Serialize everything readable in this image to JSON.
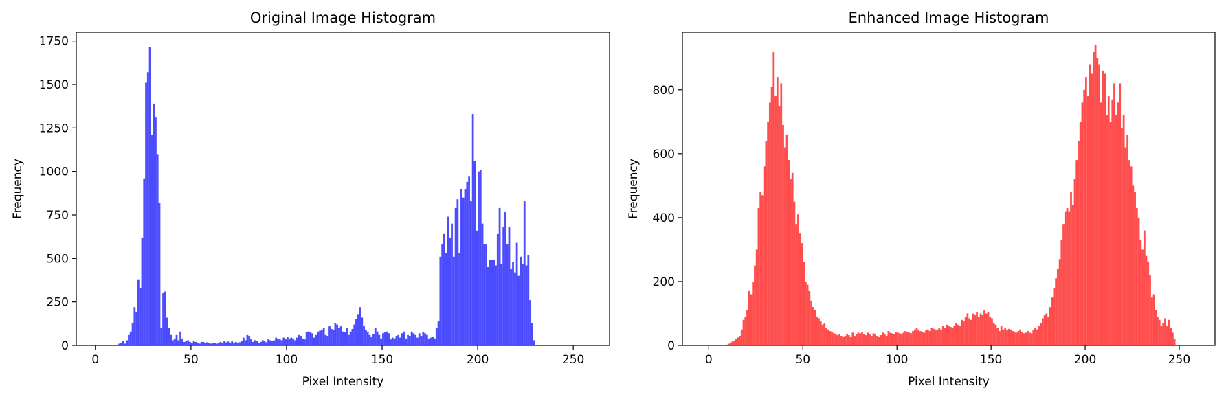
{
  "chart_data": [
    {
      "type": "histogram",
      "title": "Original Image Histogram",
      "xlabel": "Pixel Intensity",
      "ylabel": "Frequency",
      "xlim": [
        -10,
        269
      ],
      "ylim": [
        0,
        1800
      ],
      "xticks": [
        0,
        50,
        100,
        150,
        200,
        250
      ],
      "yticks": [
        0,
        250,
        500,
        750,
        1000,
        1250,
        1500,
        1750
      ],
      "color": "#0000ff",
      "opacity": 0.7,
      "bin_start": 0,
      "bin_width": 1,
      "values": [
        0,
        0,
        0,
        0,
        0,
        0,
        0,
        0,
        0,
        0,
        0,
        0,
        10,
        15,
        25,
        10,
        30,
        60,
        80,
        130,
        220,
        190,
        380,
        330,
        620,
        960,
        1510,
        1570,
        1715,
        1210,
        1390,
        1310,
        1100,
        820,
        100,
        300,
        310,
        160,
        100,
        60,
        30,
        40,
        60,
        30,
        80,
        40,
        20,
        25,
        30,
        20,
        15,
        25,
        20,
        15,
        10,
        20,
        20,
        15,
        18,
        12,
        10,
        15,
        12,
        10,
        15,
        20,
        15,
        25,
        18,
        22,
        15,
        25,
        12,
        20,
        15,
        18,
        25,
        45,
        30,
        60,
        55,
        35,
        20,
        30,
        25,
        15,
        20,
        30,
        25,
        18,
        35,
        30,
        25,
        30,
        45,
        40,
        35,
        30,
        45,
        35,
        50,
        40,
        45,
        40,
        30,
        45,
        60,
        55,
        40,
        35,
        75,
        80,
        75,
        70,
        45,
        60,
        80,
        85,
        90,
        100,
        60,
        55,
        110,
        95,
        90,
        130,
        120,
        100,
        110,
        80,
        75,
        100,
        60,
        80,
        95,
        120,
        150,
        180,
        220,
        160,
        110,
        90,
        80,
        60,
        50,
        65,
        100,
        80,
        60,
        40,
        70,
        75,
        80,
        70,
        35,
        45,
        40,
        55,
        60,
        45,
        70,
        80,
        40,
        60,
        55,
        80,
        70,
        60,
        45,
        70,
        55,
        75,
        70,
        60,
        40,
        45,
        50,
        40,
        100,
        140,
        510,
        580,
        640,
        530,
        740,
        620,
        700,
        510,
        790,
        840,
        530,
        900,
        850,
        900,
        940,
        970,
        830,
        1330,
        1060,
        660,
        1000,
        1010,
        700,
        580,
        580,
        450,
        490,
        490,
        490,
        460,
        640,
        790,
        470,
        680,
        770,
        580,
        680,
        440,
        480,
        420,
        590,
        400,
        510,
        470,
        830,
        460,
        520,
        260,
        130,
        30,
        0,
        0,
        0,
        0,
        0,
        0,
        0,
        0,
        0,
        0,
        0,
        0,
        0,
        0,
        0,
        0
      ]
    },
    {
      "type": "histogram",
      "title": "Enhanced Image Histogram",
      "xlabel": "Pixel Intensity",
      "ylabel": "Frequency",
      "xlim": [
        -14,
        269
      ],
      "ylim": [
        0,
        980
      ],
      "xticks": [
        0,
        50,
        100,
        150,
        200,
        250
      ],
      "yticks": [
        0,
        200,
        400,
        600,
        800
      ],
      "color": "#ff0000",
      "opacity": 0.7,
      "bin_start": 0,
      "bin_width": 1,
      "values": [
        0,
        0,
        0,
        0,
        0,
        0,
        0,
        0,
        0,
        0,
        5,
        8,
        12,
        15,
        20,
        25,
        30,
        50,
        80,
        90,
        110,
        170,
        160,
        200,
        250,
        300,
        430,
        480,
        470,
        560,
        640,
        700,
        760,
        810,
        920,
        780,
        840,
        750,
        820,
        690,
        620,
        660,
        580,
        520,
        540,
        450,
        380,
        410,
        350,
        320,
        260,
        200,
        190,
        170,
        140,
        120,
        110,
        90,
        85,
        75,
        65,
        70,
        55,
        50,
        45,
        42,
        38,
        35,
        32,
        35,
        30,
        28,
        30,
        35,
        32,
        28,
        40,
        30,
        35,
        40,
        38,
        42,
        35,
        32,
        40,
        35,
        30,
        38,
        35,
        30,
        28,
        32,
        40,
        35,
        30,
        45,
        40,
        38,
        35,
        42,
        40,
        38,
        35,
        40,
        45,
        42,
        40,
        38,
        45,
        50,
        55,
        50,
        45,
        42,
        40,
        48,
        50,
        45,
        55,
        52,
        48,
        50,
        55,
        50,
        60,
        55,
        65,
        60,
        58,
        55,
        62,
        70,
        65,
        60,
        80,
        75,
        90,
        100,
        85,
        80,
        100,
        95,
        105,
        90,
        100,
        95,
        110,
        100,
        105,
        90,
        85,
        70,
        65,
        55,
        45,
        60,
        50,
        55,
        48,
        52,
        50,
        45,
        42,
        40,
        45,
        50,
        42,
        38,
        40,
        45,
        40,
        38,
        48,
        55,
        50,
        60,
        70,
        85,
        95,
        100,
        90,
        120,
        150,
        180,
        210,
        240,
        270,
        330,
        380,
        420,
        430,
        420,
        480,
        440,
        520,
        580,
        640,
        700,
        760,
        800,
        840,
        780,
        880,
        850,
        920,
        940,
        900,
        880,
        760,
        860,
        850,
        720,
        780,
        700,
        770,
        820,
        720,
        760,
        820,
        680,
        720,
        620,
        660,
        580,
        560,
        500,
        480,
        430,
        400,
        330,
        300,
        360,
        280,
        260,
        220,
        150,
        160,
        110,
        90,
        80,
        60,
        70,
        85,
        60,
        80,
        55,
        40,
        20,
        0,
        0,
        0,
        0,
        0,
        0,
        0,
        0,
        0,
        0,
        0,
        0,
        0,
        0,
        0,
        0,
        0,
        0,
        0,
        0,
        0,
        0
      ]
    }
  ]
}
